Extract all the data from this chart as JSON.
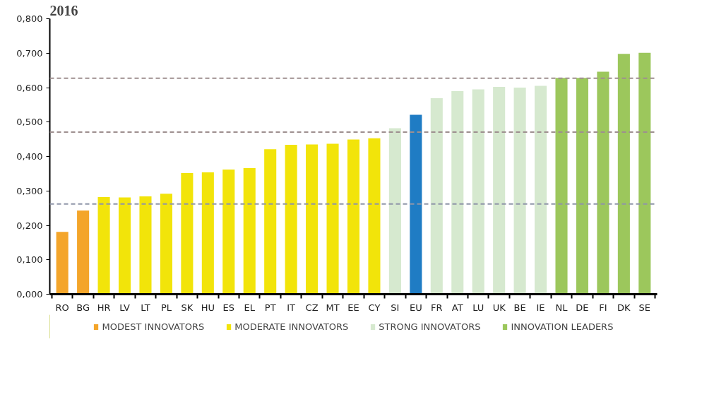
{
  "chart_data": {
    "type": "bar",
    "title": "2016",
    "categories": [
      "RO",
      "BG",
      "HR",
      "LV",
      "LT",
      "PL",
      "SK",
      "HU",
      "ES",
      "EL",
      "PT",
      "IT",
      "CZ",
      "MT",
      "EE",
      "CY",
      "SI",
      "EU",
      "FR",
      "AT",
      "LU",
      "UK",
      "BE",
      "IE",
      "NL",
      "DE",
      "FI",
      "DK",
      "SE"
    ],
    "series": [
      {
        "name": "MODEST INNOVATORS",
        "color": "#f4a52a",
        "values": [
          0.181,
          0.243,
          null,
          null,
          null,
          null,
          null,
          null,
          null,
          null,
          null,
          null,
          null,
          null,
          null,
          null,
          null,
          null,
          null,
          null,
          null,
          null,
          null,
          null,
          null,
          null,
          null,
          null,
          null
        ]
      },
      {
        "name": "MODERATE INNOVATORS",
        "color": "#f2e40a",
        "values": [
          null,
          null,
          0.282,
          0.281,
          0.284,
          0.292,
          0.352,
          0.354,
          0.362,
          0.366,
          0.421,
          0.434,
          0.435,
          0.437,
          0.449,
          0.453,
          null,
          null,
          null,
          null,
          null,
          null,
          null,
          null,
          null,
          null,
          null,
          null,
          null
        ]
      },
      {
        "name": "STRONG INNOVATORS",
        "color": "#d6e9cf",
        "values": [
          null,
          null,
          null,
          null,
          null,
          null,
          null,
          null,
          null,
          null,
          null,
          null,
          null,
          null,
          null,
          null,
          0.482,
          null,
          0.569,
          0.59,
          0.595,
          0.602,
          0.6,
          0.605,
          null,
          null,
          null,
          null,
          null
        ]
      },
      {
        "color": "#1f7cc4",
        "values": [
          null,
          null,
          null,
          null,
          null,
          null,
          null,
          null,
          null,
          null,
          null,
          null,
          null,
          null,
          null,
          null,
          null,
          0.521,
          null,
          null,
          null,
          null,
          null,
          null,
          null,
          null,
          null,
          null,
          null
        ]
      },
      {
        "name": "INNOVATION LEADERS",
        "color": "#9cc75c",
        "values": [
          null,
          null,
          null,
          null,
          null,
          null,
          null,
          null,
          null,
          null,
          null,
          null,
          null,
          null,
          null,
          null,
          null,
          null,
          null,
          null,
          null,
          null,
          null,
          null,
          0.628,
          0.628,
          0.646,
          0.698,
          0.701
        ]
      }
    ],
    "ylim": [
      0,
      0.8
    ],
    "yticks": [
      {
        "value": 0,
        "label": "0,000"
      },
      {
        "value": 0.1,
        "label": "0,100"
      },
      {
        "value": 0.2,
        "label": "0,200"
      },
      {
        "value": 0.3,
        "label": "0,300"
      },
      {
        "value": 0.4,
        "label": "0,400"
      },
      {
        "value": 0.5,
        "label": "0,500"
      },
      {
        "value": 0.6,
        "label": "0,600"
      },
      {
        "value": 0.7,
        "label": "0,700"
      },
      {
        "value": 0.8,
        "label": "0,800"
      }
    ],
    "ref_lines": [
      {
        "axis": "y",
        "value": 0.627,
        "color": "#9e8f8f",
        "line_style": "dashed"
      },
      {
        "axis": "y",
        "value": 0.471,
        "color": "#9e8f8f",
        "line_style": "dashed"
      },
      {
        "axis": "y",
        "value": 0.262,
        "color": "#8f95a8",
        "line_style": "dashed"
      }
    ],
    "grid": false,
    "legend": "bottom"
  }
}
